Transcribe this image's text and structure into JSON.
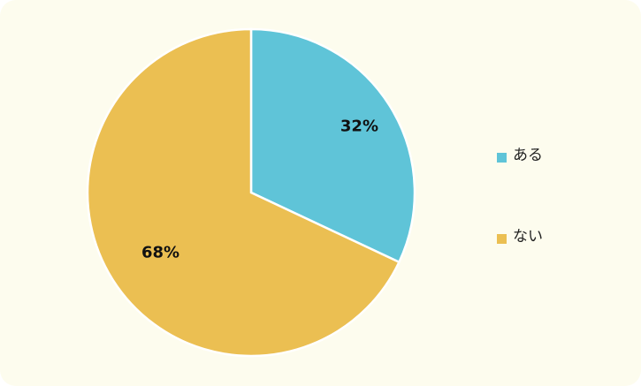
{
  "chart_data": {
    "type": "pie",
    "categories": [
      "ある",
      "ない"
    ],
    "values": [
      32,
      68
    ],
    "value_labels": [
      "32%",
      "68%"
    ],
    "colors": [
      "#5fc4d8",
      "#ebbf52"
    ],
    "legend": "right"
  }
}
